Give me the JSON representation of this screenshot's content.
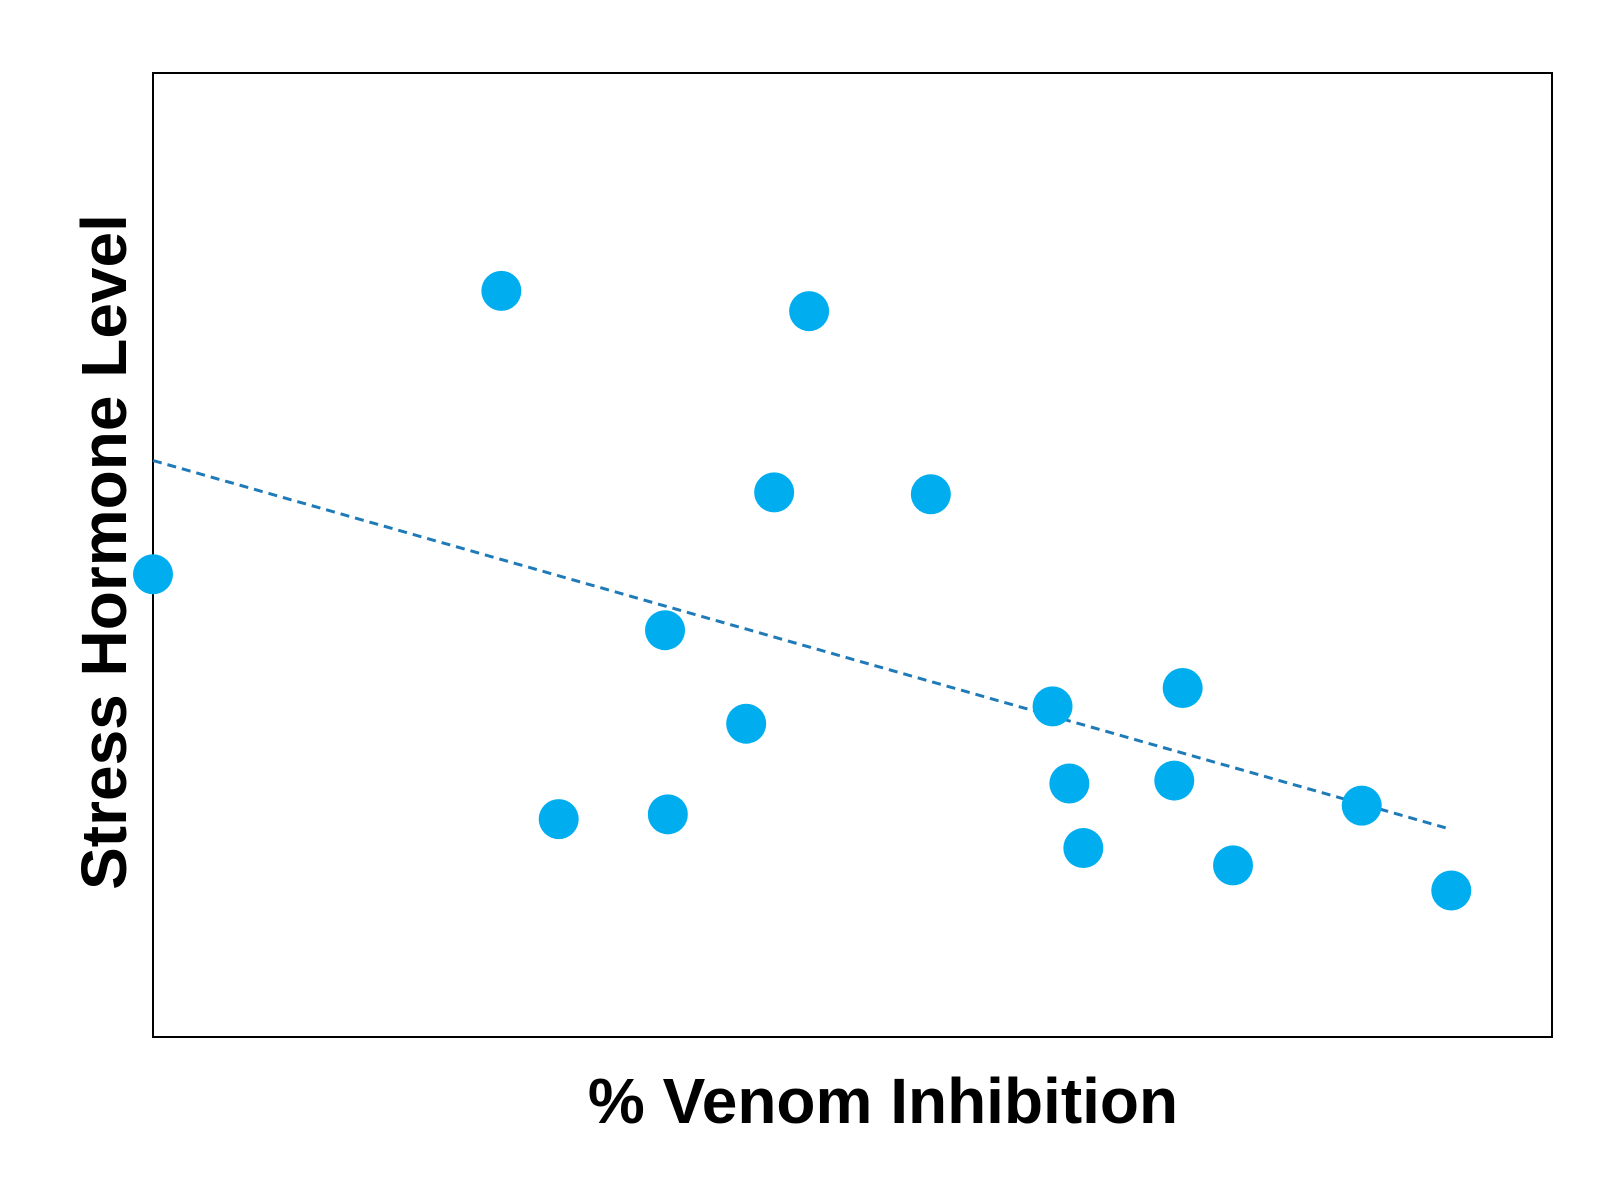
{
  "chart_data": {
    "type": "scatter",
    "title": "",
    "xlabel": "% Venom Inhibition",
    "ylabel": "Stress Hormone Level",
    "xlim": [
      0,
      100
    ],
    "ylim": [
      0,
      100
    ],
    "grid": false,
    "ticks_shown": false,
    "colors": {
      "points": "#00aeef",
      "trendline": "#1f7ab8",
      "frame": "#000000"
    },
    "series": [
      {
        "points": [
          {
            "x": 0.0,
            "y": 48.0
          },
          {
            "x": 24.9,
            "y": 77.4
          },
          {
            "x": 29.0,
            "y": 22.6
          },
          {
            "x": 36.6,
            "y": 42.2
          },
          {
            "x": 36.8,
            "y": 23.1
          },
          {
            "x": 42.4,
            "y": 32.5
          },
          {
            "x": 44.4,
            "y": 56.5
          },
          {
            "x": 46.9,
            "y": 75.3
          },
          {
            "x": 55.6,
            "y": 56.3
          },
          {
            "x": 64.3,
            "y": 34.3
          },
          {
            "x": 65.5,
            "y": 26.3
          },
          {
            "x": 66.5,
            "y": 19.6
          },
          {
            "x": 73.6,
            "y": 36.2
          },
          {
            "x": 73.0,
            "y": 26.6
          },
          {
            "x": 77.2,
            "y": 17.8
          },
          {
            "x": 86.4,
            "y": 24.0
          },
          {
            "x": 92.8,
            "y": 15.2
          }
        ]
      }
    ],
    "trendline": {
      "style": "dashed",
      "x": [
        0,
        92.4
      ],
      "y": [
        59.8,
        21.7
      ]
    }
  }
}
